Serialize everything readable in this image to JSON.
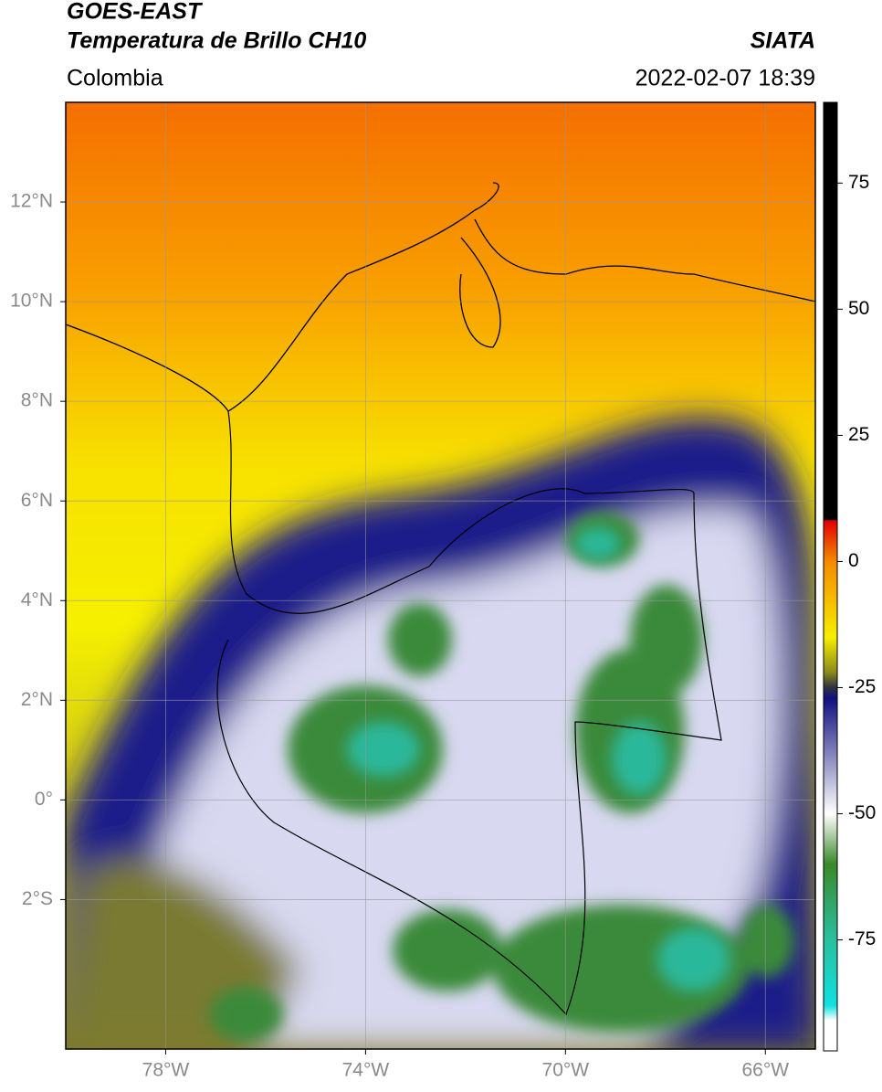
{
  "header": {
    "satellite": "GOES-EAST",
    "product": "Temperatura de Brillo CH10",
    "region": "Colombia",
    "source": "SIATA",
    "datetime": "2022-02-07 18:39"
  },
  "map": {
    "xlim": [
      -80,
      -65
    ],
    "ylim": [
      -5,
      14
    ],
    "xticks": [
      {
        "value": -78,
        "label": "78°W"
      },
      {
        "value": -74,
        "label": "74°W"
      },
      {
        "value": -70,
        "label": "70°W"
      },
      {
        "value": -66,
        "label": "66°W"
      }
    ],
    "yticks": [
      {
        "value": 12,
        "label": "12°N"
      },
      {
        "value": 10,
        "label": "10°N"
      },
      {
        "value": 8,
        "label": "8°N"
      },
      {
        "value": 6,
        "label": "6°N"
      },
      {
        "value": 4,
        "label": "4°N"
      },
      {
        "value": 2,
        "label": "2°N"
      },
      {
        "value": 0,
        "label": "0°"
      },
      {
        "value": -2,
        "label": "2°S"
      }
    ],
    "grid": true
  },
  "colorbar": {
    "lim": [
      -97,
      91
    ],
    "ticks": [
      75,
      50,
      25,
      0,
      -25,
      -50,
      -75
    ]
  }
}
